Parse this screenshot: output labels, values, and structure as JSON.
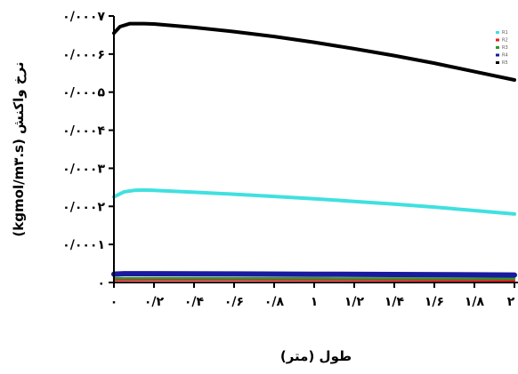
{
  "chart_data": {
    "type": "line",
    "xlabel": "طول (متر)",
    "ylabel": "نرخ واکنش (kgmol/m۳.s)",
    "xlim": [
      0,
      2
    ],
    "ylim": [
      0,
      0.0007
    ],
    "x_ticks": [
      {
        "value": 0,
        "label": "۰"
      },
      {
        "value": 0.2,
        "label": "۰/۲"
      },
      {
        "value": 0.4,
        "label": "۰/۴"
      },
      {
        "value": 0.6,
        "label": "۰/۶"
      },
      {
        "value": 0.8,
        "label": "۰/۸"
      },
      {
        "value": 1,
        "label": "۱"
      },
      {
        "value": 1.2,
        "label": "۱/۲"
      },
      {
        "value": 1.4,
        "label": "۱/۴"
      },
      {
        "value": 1.6,
        "label": "۱/۶"
      },
      {
        "value": 1.8,
        "label": "۱/۸"
      },
      {
        "value": 2,
        "label": "۲"
      }
    ],
    "y_ticks": [
      {
        "value": 0,
        "label": "۰"
      },
      {
        "value": 0.0001,
        "label": "۰/۰۰۰۱"
      },
      {
        "value": 0.0002,
        "label": "۰/۰۰۰۲"
      },
      {
        "value": 0.0003,
        "label": "۰/۰۰۰۳"
      },
      {
        "value": 0.0004,
        "label": "۰/۰۰۰۴"
      },
      {
        "value": 0.0005,
        "label": "۰/۰۰۰۵"
      },
      {
        "value": 0.0006,
        "label": "۰/۰۰۰۶"
      },
      {
        "value": 0.0007,
        "label": "۰/۰۰۰۷"
      }
    ],
    "legend": "top-right",
    "grid": false,
    "series": [
      {
        "name": "R1",
        "color": "#40e0e0",
        "x": [
          0,
          0.05,
          0.1,
          0.15,
          0.2,
          0.4,
          0.6,
          0.8,
          1.0,
          1.2,
          1.4,
          1.6,
          1.8,
          2.0
        ],
        "y": [
          0.000225,
          0.000238,
          0.000242,
          0.000243,
          0.000242,
          0.000237,
          0.000232,
          0.000226,
          0.00022,
          0.000213,
          0.000206,
          0.000198,
          0.000189,
          0.00018
        ]
      },
      {
        "name": "R2",
        "color": "#e02020",
        "x": [
          0,
          0.2,
          0.6,
          1.0,
          1.4,
          1.8,
          2.0
        ],
        "y": [
          6e-06,
          6.5e-06,
          6.3e-06,
          6e-06,
          5.8e-06,
          5.5e-06,
          5.4e-06
        ]
      },
      {
        "name": "R3",
        "color": "#2a9a2a",
        "x": [
          0,
          0.2,
          0.6,
          1.0,
          1.4,
          1.8,
          2.0
        ],
        "y": [
          1.1e-05,
          1.15e-05,
          1.12e-05,
          1.1e-05,
          1.07e-05,
          1.04e-05,
          1.02e-05
        ]
      },
      {
        "name": "R4",
        "color": "#1a1aa0",
        "x": [
          0,
          0.05,
          0.2,
          0.6,
          1.0,
          1.4,
          1.8,
          2.0
        ],
        "y": [
          2.2e-05,
          2.3e-05,
          2.32e-05,
          2.25e-05,
          2.17e-05,
          2.09e-05,
          2.01e-05,
          1.97e-05
        ]
      },
      {
        "name": "R5",
        "color": "#000000",
        "x": [
          0,
          0.03,
          0.08,
          0.15,
          0.2,
          0.4,
          0.6,
          0.8,
          1.0,
          1.2,
          1.4,
          1.6,
          1.8,
          2.0
        ],
        "y": [
          0.000655,
          0.000672,
          0.00068,
          0.00068,
          0.000679,
          0.00067,
          0.000659,
          0.000646,
          0.000631,
          0.000614,
          0.000596,
          0.000576,
          0.000554,
          0.000532
        ]
      }
    ]
  }
}
